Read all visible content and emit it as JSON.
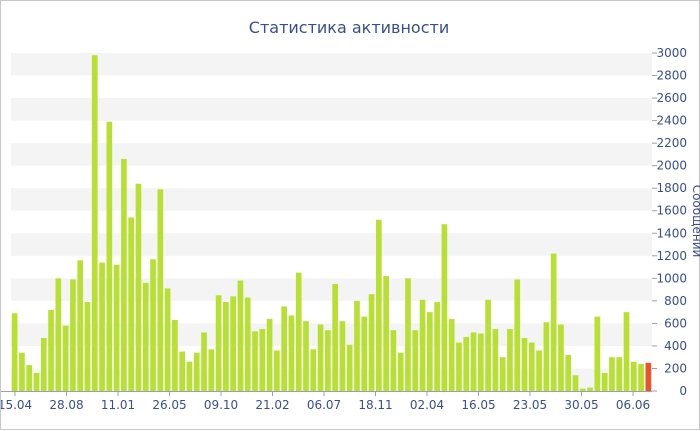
{
  "chart_data": {
    "type": "bar",
    "title": "Статистика активности",
    "ylabel": "Сообщений",
    "xlabel": "",
    "ylim": [
      0,
      3000
    ],
    "yticks": [
      0,
      200,
      400,
      600,
      800,
      1000,
      1200,
      1400,
      1600,
      1800,
      2000,
      2200,
      2400,
      2600,
      2800,
      3000
    ],
    "xtick_labels": [
      "15.04",
      "28.08",
      "11.01",
      "26.05",
      "09.10",
      "21.02",
      "06.07",
      "18.11",
      "02.04",
      "16.05",
      "23.05",
      "30.05",
      "06.06"
    ],
    "grid": "alternating horizontal bands",
    "colors": {
      "bar": "#b8e034",
      "highlight": "#e8552a",
      "text": "#3a4f8a",
      "band": "#f4f4f4"
    },
    "values": [
      690,
      340,
      230,
      160,
      470,
      720,
      1000,
      580,
      990,
      1160,
      790,
      2980,
      1140,
      2390,
      1120,
      2060,
      1540,
      1840,
      960,
      1170,
      1790,
      910,
      630,
      350,
      260,
      340,
      520,
      370,
      850,
      790,
      840,
      980,
      830,
      530,
      550,
      640,
      360,
      750,
      670,
      1050,
      620,
      370,
      590,
      540,
      950,
      620,
      410,
      800,
      660,
      860,
      1520,
      1020,
      540,
      340,
      1000,
      540,
      810,
      700,
      790,
      1480,
      640,
      430,
      480,
      520,
      510,
      810,
      550,
      300,
      550,
      990,
      470,
      430,
      360,
      610,
      1220,
      590,
      320,
      140,
      20,
      30,
      660,
      160,
      300,
      300,
      700,
      260,
      240,
      250
    ],
    "highlight_index": 87
  }
}
